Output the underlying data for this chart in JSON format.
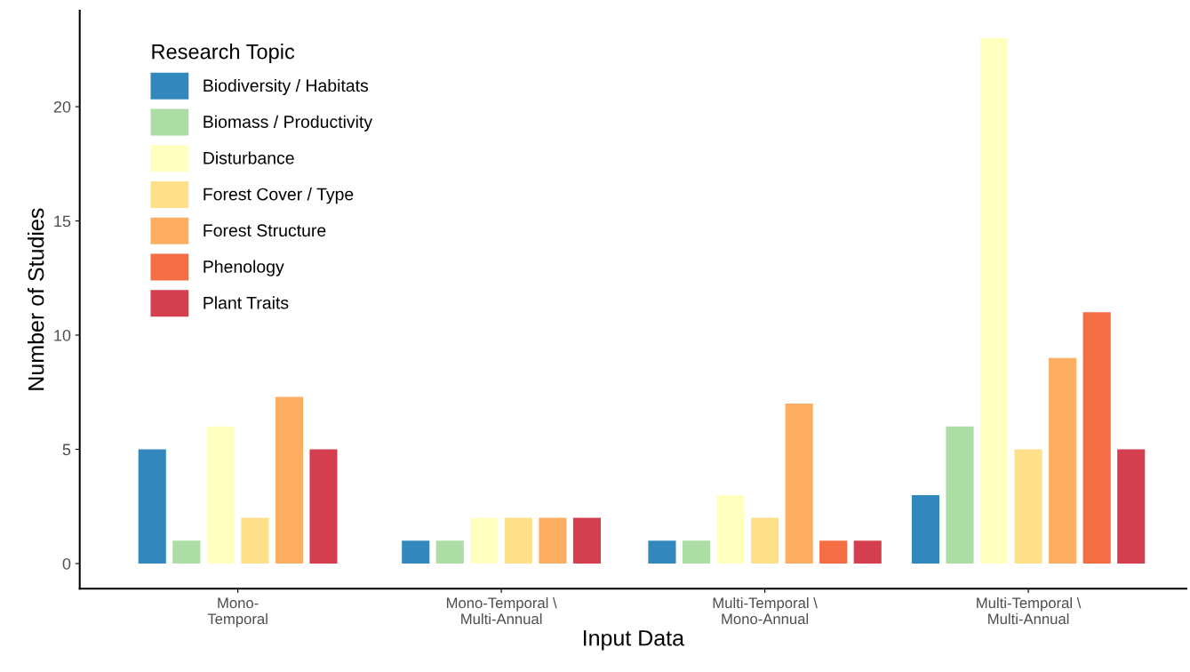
{
  "chart_data": {
    "type": "bar",
    "xlabel": "Input Data",
    "ylabel": "Number of Studies",
    "legend_title": "Research Topic",
    "legend": "top left",
    "grid": false,
    "categories": [
      "Mono-\nTemporal",
      "Mono-Temporal \\\nMulti-Annual",
      "Multi-Temporal \\\nMono-Annual",
      "Multi-Temporal \\\nMulti-Annual"
    ],
    "ylim": [
      -1.1,
      24.2
    ],
    "yticks": [
      0,
      5,
      10,
      15,
      20
    ],
    "series": [
      {
        "name": "Biodiversity / Habitats",
        "color": "#3288bd",
        "values": [
          5,
          1,
          1,
          3
        ]
      },
      {
        "name": "Biomass / Productivity",
        "color": "#abdda4",
        "values": [
          1,
          1,
          1,
          6
        ]
      },
      {
        "name": "Disturbance",
        "color": "#ffffbf",
        "values": [
          6,
          2,
          3,
          23
        ]
      },
      {
        "name": "Forest Cover / Type",
        "color": "#fee08b",
        "values": [
          2,
          2,
          2,
          5
        ]
      },
      {
        "name": "Forest Structure",
        "color": "#fdae61",
        "values": [
          7.3,
          2,
          7,
          9
        ]
      },
      {
        "name": "Phenology",
        "color": "#f46d43",
        "values": [
          null,
          null,
          1,
          11
        ]
      },
      {
        "name": "Plant Traits",
        "color": "#d53e4f",
        "values": [
          5,
          2,
          1,
          5
        ]
      }
    ]
  }
}
